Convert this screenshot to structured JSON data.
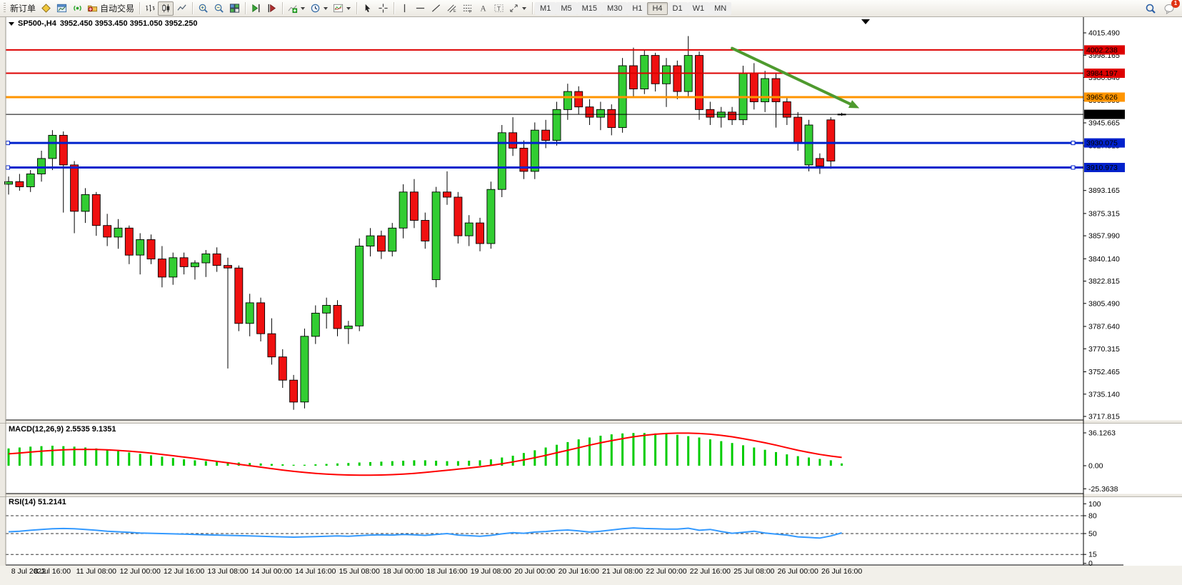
{
  "toolbar": {
    "new_order_label": "新订单",
    "auto_trading_label": "自动交易",
    "timeframes": [
      "M1",
      "M5",
      "M15",
      "M30",
      "H1",
      "H4",
      "D1",
      "W1",
      "MN"
    ],
    "active_timeframe": "H4",
    "notification_badge": "1",
    "icons": [
      "new-order",
      "chart-window",
      "signals",
      "auto-trading",
      "bar-chart",
      "candlestick-chart",
      "line-chart",
      "zoom-in",
      "zoom-out",
      "tile-windows",
      "chart-shift",
      "auto-scroll",
      "indicators",
      "periods",
      "templates",
      "cursor",
      "crosshair",
      "vertical-line",
      "horizontal-line",
      "trendline",
      "equidistant-channel",
      "fibonacci",
      "text",
      "text-label",
      "arrows",
      "search",
      "chat"
    ]
  },
  "chart": {
    "symbol_title": "SP500-,H4",
    "ohlc_text": "3952.450 3953.450 3951.050 3952.250"
  },
  "chart_data": {
    "type": "candlestick",
    "symbol": "SP500-",
    "timeframe": "H4",
    "bars_per_label": 4,
    "x_labels": [
      "8 Jul 2022",
      "8 Jul 16:00",
      "11 Jul 08:00",
      "12 Jul 00:00",
      "12 Jul 16:00",
      "13 Jul 08:00",
      "14 Jul 00:00",
      "14 Jul 16:00",
      "15 Jul 08:00",
      "18 Jul 00:00",
      "18 Jul 16:00",
      "19 Jul 08:00",
      "20 Jul 00:00",
      "20 Jul 16:00",
      "21 Jul 08:00",
      "22 Jul 00:00",
      "22 Jul 16:00",
      "25 Jul 08:00",
      "26 Jul 00:00",
      "26 Jul 16:00"
    ],
    "candles": [
      [
        3898,
        3904,
        3890,
        3900
      ],
      [
        3900,
        3906,
        3893,
        3896
      ],
      [
        3896,
        3909,
        3892,
        3906
      ],
      [
        3906,
        3924,
        3900,
        3918
      ],
      [
        3918,
        3940,
        3909,
        3936
      ],
      [
        3936,
        3939,
        3876,
        3913
      ],
      [
        3913,
        3916,
        3860,
        3877
      ],
      [
        3877,
        3895,
        3868,
        3890
      ],
      [
        3890,
        3892,
        3858,
        3866
      ],
      [
        3866,
        3875,
        3850,
        3857
      ],
      [
        3857,
        3871,
        3848,
        3864
      ],
      [
        3864,
        3866,
        3836,
        3843
      ],
      [
        3843,
        3860,
        3828,
        3855
      ],
      [
        3855,
        3859,
        3836,
        3840
      ],
      [
        3840,
        3850,
        3818,
        3826
      ],
      [
        3826,
        3845,
        3820,
        3841
      ],
      [
        3841,
        3845,
        3828,
        3834
      ],
      [
        3834,
        3839,
        3824,
        3837
      ],
      [
        3837,
        3847,
        3826,
        3844
      ],
      [
        3844,
        3849,
        3830,
        3835
      ],
      [
        3835,
        3841,
        3755,
        3833
      ],
      [
        3833,
        3835,
        3784,
        3790
      ],
      [
        3790,
        3813,
        3780,
        3806
      ],
      [
        3806,
        3810,
        3776,
        3782
      ],
      [
        3782,
        3794,
        3758,
        3764
      ],
      [
        3764,
        3770,
        3740,
        3746
      ],
      [
        3746,
        3750,
        3723,
        3729
      ],
      [
        3729,
        3786,
        3724,
        3780
      ],
      [
        3780,
        3804,
        3774,
        3798
      ],
      [
        3798,
        3810,
        3786,
        3804
      ],
      [
        3804,
        3808,
        3780,
        3786
      ],
      [
        3786,
        3792,
        3774,
        3788
      ],
      [
        3788,
        3856,
        3784,
        3850
      ],
      [
        3850,
        3864,
        3842,
        3858
      ],
      [
        3858,
        3862,
        3840,
        3846
      ],
      [
        3846,
        3868,
        3842,
        3864
      ],
      [
        3864,
        3898,
        3856,
        3892
      ],
      [
        3892,
        3902,
        3864,
        3870
      ],
      [
        3870,
        3876,
        3848,
        3854
      ],
      [
        3824,
        3896,
        3818,
        3892
      ],
      [
        3892,
        3908,
        3882,
        3888
      ],
      [
        3888,
        3892,
        3852,
        3858
      ],
      [
        3858,
        3874,
        3850,
        3868
      ],
      [
        3868,
        3872,
        3846,
        3852
      ],
      [
        3852,
        3900,
        3848,
        3894
      ],
      [
        3894,
        3944,
        3888,
        3938
      ],
      [
        3938,
        3950,
        3920,
        3926
      ],
      [
        3926,
        3932,
        3902,
        3908
      ],
      [
        3908,
        3946,
        3902,
        3940
      ],
      [
        3940,
        3948,
        3926,
        3932
      ],
      [
        3932,
        3962,
        3928,
        3956
      ],
      [
        3956,
        3976,
        3948,
        3970
      ],
      [
        3970,
        3974,
        3952,
        3958
      ],
      [
        3958,
        3964,
        3944,
        3950
      ],
      [
        3950,
        3962,
        3940,
        3956
      ],
      [
        3956,
        3960,
        3936,
        3942
      ],
      [
        3942,
        3996,
        3938,
        3990
      ],
      [
        3990,
        4004,
        3966,
        3972
      ],
      [
        3972,
        4002,
        3968,
        3998
      ],
      [
        3998,
        4000,
        3970,
        3976
      ],
      [
        3976,
        3996,
        3958,
        3990
      ],
      [
        3990,
        3994,
        3964,
        3970
      ],
      [
        3970,
        4013,
        3966,
        3998
      ],
      [
        3998,
        4001,
        3948,
        3956
      ],
      [
        3956,
        3962,
        3944,
        3950
      ],
      [
        3950,
        3958,
        3942,
        3954
      ],
      [
        3954,
        3958,
        3944,
        3948
      ],
      [
        3948,
        3990,
        3944,
        3984
      ],
      [
        3984,
        3992,
        3956,
        3962
      ],
      [
        3962,
        3986,
        3954,
        3980
      ],
      [
        3980,
        3984,
        3942,
        3962
      ],
      [
        3962,
        3966,
        3944,
        3950
      ],
      [
        3950,
        3954,
        3924,
        3930
      ],
      [
        3913,
        3948,
        3908,
        3944
      ],
      [
        3918,
        3922,
        3906,
        3912
      ],
      [
        3948,
        3950,
        3910,
        3916
      ],
      [
        3952.45,
        3953.45,
        3951.05,
        3952.25
      ]
    ],
    "price_axis_ticks": [
      "4015.490",
      "3998.165",
      "3980.840",
      "3962.990",
      "3945.665",
      "3927.815",
      "3893.165",
      "3875.315",
      "3857.990",
      "3840.140",
      "3822.815",
      "3805.490",
      "3787.640",
      "3770.315",
      "3752.465",
      "3735.140",
      "3717.815"
    ],
    "hlines": [
      {
        "value": "4002.238",
        "color": "#DD0000",
        "width": 2
      },
      {
        "value": "3984.197",
        "color": "#DD0000",
        "width": 2
      },
      {
        "value": "3965.626",
        "color": "#FF9500",
        "width": 3
      },
      {
        "value": "3930.075",
        "color": "#0022CC",
        "width": 3,
        "handles": true
      },
      {
        "value": "3910.973",
        "color": "#0022CC",
        "width": 3,
        "handles": true
      }
    ],
    "price_line": {
      "value": "3952.250",
      "color": "#000000",
      "width": 1
    },
    "trend_arrow": {
      "from_bar": 66,
      "from_price": 4003.5,
      "to_bar": 77.6,
      "to_price": 3957,
      "color": "#4E9A2E"
    },
    "colors": {
      "bull": "#32CD32",
      "bear": "#EF1010",
      "wick": "#000000"
    },
    "macd": {
      "label": "MACD(12,26,9)",
      "values_text": "2.5535 9.1351",
      "hist_color": "#00CC00",
      "signal_color": "#FF0000",
      "axis_ticks": [
        "36.1263",
        "0.00",
        "-25.3638"
      ],
      "hist": [
        19,
        20,
        21,
        21.5,
        22,
        21.5,
        21,
        20,
        19,
        17.5,
        16,
        14.5,
        13,
        11.5,
        10,
        8.5,
        7,
        6,
        5,
        4.5,
        4,
        3.5,
        3,
        2.5,
        2,
        1.5,
        1,
        1,
        1.5,
        2,
        2.5,
        3,
        3.5,
        4,
        4.5,
        5,
        5.5,
        6,
        6,
        5.5,
        5,
        5,
        5.5,
        6,
        7,
        9,
        11,
        14,
        17,
        20,
        23,
        26,
        29,
        31,
        33,
        34.5,
        35.5,
        36,
        36,
        35.5,
        35,
        34,
        32.5,
        31,
        29,
        27,
        25,
        22.5,
        20,
        17.5,
        15,
        12.5,
        10.5,
        9,
        7.5,
        6,
        2.55
      ],
      "signal": [
        13,
        14,
        15,
        16,
        16.8,
        17.4,
        17.8,
        18,
        17.8,
        17.4,
        16.8,
        16,
        15,
        13.8,
        12.4,
        11,
        9.5,
        8,
        6.4,
        4.8,
        3.2,
        1.6,
        0,
        -1.6,
        -3.2,
        -4.8,
        -6.2,
        -7.4,
        -8.4,
        -9.2,
        -9.8,
        -10.2,
        -10.4,
        -10.4,
        -10.2,
        -9.8,
        -9.2,
        -8.4,
        -7.4,
        -6.2,
        -5,
        -3.8,
        -2.6,
        -1.2,
        0.4,
        2.2,
        4.2,
        6.4,
        8.8,
        11.4,
        14.2,
        17,
        19.8,
        22.6,
        25.2,
        27.6,
        29.8,
        31.8,
        33.4,
        34.6,
        35.4,
        35.8,
        35.8,
        35.4,
        34.6,
        33.4,
        31.8,
        29.8,
        27.6,
        25.2,
        22.6,
        19.8,
        17,
        14.6,
        12.4,
        10.6,
        9.14
      ]
    },
    "rsi": {
      "label": "RSI(14)",
      "value_text": "51.2141",
      "line_color": "#3399FF",
      "levels": [
        80,
        50,
        15
      ],
      "axis_ticks": [
        "100",
        "80",
        "50",
        "15",
        "0"
      ],
      "values": [
        53,
        54,
        55.5,
        57,
        58,
        58.5,
        58,
        57,
        55.5,
        54,
        53,
        52,
        51,
        50.5,
        50,
        49.5,
        49,
        48.5,
        48,
        47.5,
        47,
        46.5,
        46,
        45.5,
        45,
        44.5,
        44,
        44.5,
        45,
        45.5,
        46,
        45.5,
        46.5,
        47.5,
        48,
        47.5,
        48.5,
        48,
        47,
        48.5,
        50,
        47.5,
        46.5,
        45.5,
        47,
        49.5,
        51.5,
        50.5,
        52.5,
        53.5,
        55,
        56,
        54.5,
        52.5,
        54,
        56,
        58,
        59.5,
        58.5,
        58,
        57.5,
        57.5,
        59,
        55.5,
        57,
        53.5,
        50.5,
        52,
        54,
        51,
        49,
        47.5,
        44.5,
        43.5,
        42.5,
        46,
        51.21
      ]
    }
  }
}
